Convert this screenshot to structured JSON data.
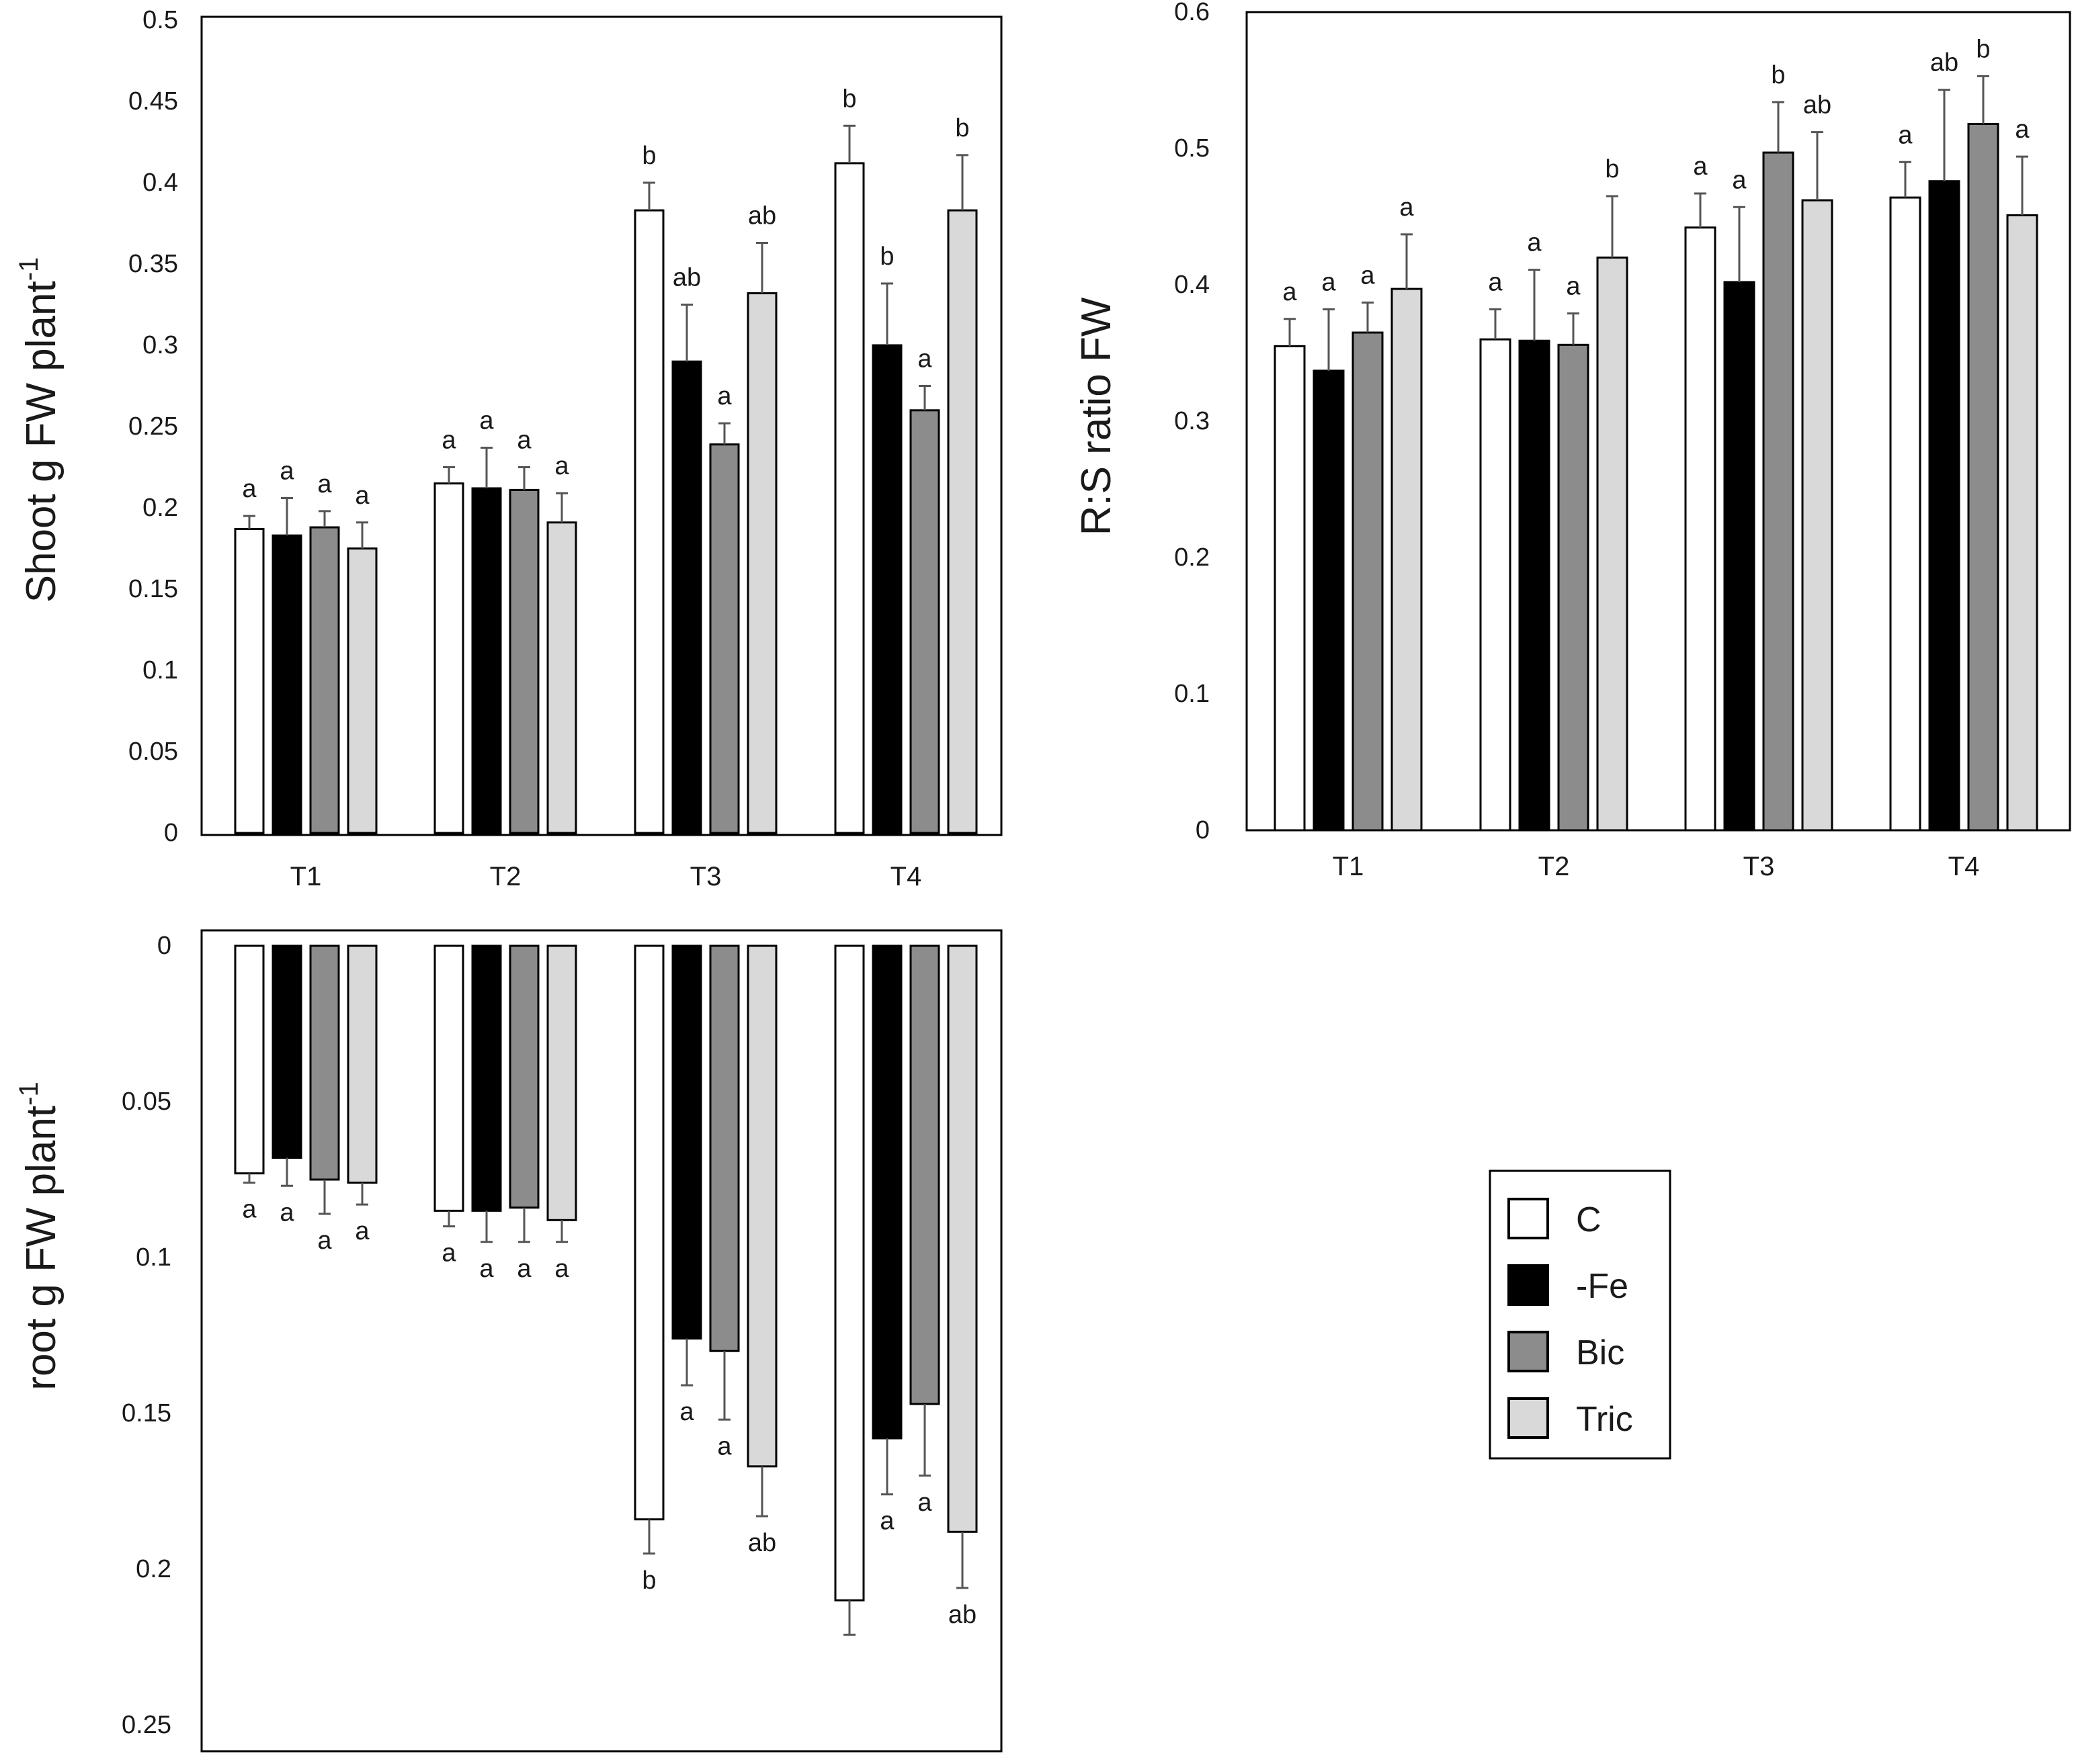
{
  "chart_data": [
    {
      "id": "shoot",
      "type": "bar",
      "ylabel": "Shoot  g FW plant",
      "ylabel_sup": "-1",
      "categories": [
        "T1",
        "T2",
        "T3",
        "T4"
      ],
      "ylim": [
        0,
        0.5
      ],
      "orientation": "up",
      "tick_values": [
        0,
        0.05,
        0.1,
        0.15,
        0.2,
        0.25,
        0.3,
        0.35,
        0.4,
        0.45,
        0.5
      ],
      "tick_labels": [
        "0",
        "0.05",
        "0.1",
        "0.15",
        "0.2",
        "0.25",
        "0.3",
        "0.35",
        "0.4",
        "0.45",
        "0.5"
      ],
      "series": [
        {
          "name": "C",
          "values": [
            0.187,
            0.215,
            0.383,
            0.412
          ],
          "errors": [
            0.008,
            0.01,
            0.017,
            0.023
          ],
          "letters": [
            "a",
            "a",
            "b",
            "b"
          ]
        },
        {
          "name": "-Fe",
          "values": [
            0.183,
            0.212,
            0.29,
            0.3
          ],
          "errors": [
            0.023,
            0.025,
            0.035,
            0.038
          ],
          "letters": [
            "a",
            "a",
            "ab",
            "b"
          ]
        },
        {
          "name": "Bic",
          "values": [
            0.188,
            0.211,
            0.239,
            0.26
          ],
          "errors": [
            0.01,
            0.014,
            0.013,
            0.015
          ],
          "letters": [
            "a",
            "a",
            "a",
            "a"
          ]
        },
        {
          "name": "Tric",
          "values": [
            0.175,
            0.191,
            0.332,
            0.383
          ],
          "errors": [
            0.016,
            0.018,
            0.031,
            0.034
          ],
          "letters": [
            "a",
            "a",
            "ab",
            "b"
          ]
        }
      ]
    },
    {
      "id": "rs",
      "type": "bar",
      "ylabel": "R:S ratio FW",
      "categories": [
        "T1",
        "T2",
        "T3",
        "T4"
      ],
      "ylim": [
        0,
        0.6
      ],
      "orientation": "up",
      "tick_values": [
        0,
        0.1,
        0.2,
        0.3,
        0.4,
        0.5,
        0.6
      ],
      "tick_labels": [
        "0",
        "0.1",
        "0.2",
        "0.3",
        "0.4",
        "0.5",
        "0.6"
      ],
      "series": [
        {
          "name": "C",
          "values": [
            0.355,
            0.36,
            0.442,
            0.464
          ],
          "errors": [
            0.02,
            0.022,
            0.025,
            0.026
          ],
          "letters": [
            "a",
            "a",
            "a",
            "a"
          ]
        },
        {
          "name": "-Fe",
          "values": [
            0.337,
            0.359,
            0.402,
            0.476
          ],
          "errors": [
            0.045,
            0.052,
            0.055,
            0.067
          ],
          "letters": [
            "a",
            "a",
            "a",
            "ab"
          ]
        },
        {
          "name": "Bic",
          "values": [
            0.365,
            0.356,
            0.497,
            0.518
          ],
          "errors": [
            0.022,
            0.023,
            0.037,
            0.035
          ],
          "letters": [
            "a",
            "a",
            "b",
            "b"
          ]
        },
        {
          "name": "Tric",
          "values": [
            0.397,
            0.42,
            0.462,
            0.451
          ],
          "errors": [
            0.04,
            0.045,
            0.05,
            0.043
          ],
          "letters": [
            "a",
            "b",
            "ab",
            "a"
          ]
        }
      ]
    },
    {
      "id": "root",
      "type": "bar",
      "ylabel": "root  g FW plant",
      "ylabel_sup": "-1",
      "categories": [
        "T1",
        "T2",
        "T3",
        "T4"
      ],
      "ylim": [
        0,
        0.25
      ],
      "orientation": "down",
      "tick_values": [
        0,
        0.05,
        0.1,
        0.15,
        0.2,
        0.25
      ],
      "tick_labels": [
        "0",
        "0.05",
        "0.1",
        "0.15",
        "0.2",
        "0.25"
      ],
      "series": [
        {
          "name": "C",
          "values": [
            0.073,
            0.085,
            0.184,
            0.21
          ],
          "errors": [
            0.003,
            0.005,
            0.011,
            0.011
          ],
          "letters": [
            "a",
            "a",
            "b",
            ""
          ]
        },
        {
          "name": "-Fe",
          "values": [
            0.068,
            0.085,
            0.126,
            0.158
          ],
          "errors": [
            0.009,
            0.01,
            0.015,
            0.018
          ],
          "letters": [
            "a",
            "a",
            "a",
            "a"
          ]
        },
        {
          "name": "Bic",
          "values": [
            0.075,
            0.084,
            0.13,
            0.147
          ],
          "errors": [
            0.011,
            0.011,
            0.022,
            0.023
          ],
          "letters": [
            "a",
            "a",
            "a",
            "a"
          ]
        },
        {
          "name": "Tric",
          "values": [
            0.076,
            0.088,
            0.167,
            0.188
          ],
          "errors": [
            0.007,
            0.007,
            0.016,
            0.018
          ],
          "letters": [
            "a",
            "a",
            "ab",
            "ab"
          ]
        }
      ]
    }
  ],
  "legend": {
    "items": [
      {
        "label": "C",
        "color": "#ffffff"
      },
      {
        "label": "-Fe",
        "color": "#000000"
      },
      {
        "label": "Bic",
        "color": "#8c8c8c"
      },
      {
        "label": "Tric",
        "color": "#d9d9d9"
      }
    ]
  },
  "series_colors": [
    "#ffffff",
    "#000000",
    "#8c8c8c",
    "#d9d9d9"
  ]
}
